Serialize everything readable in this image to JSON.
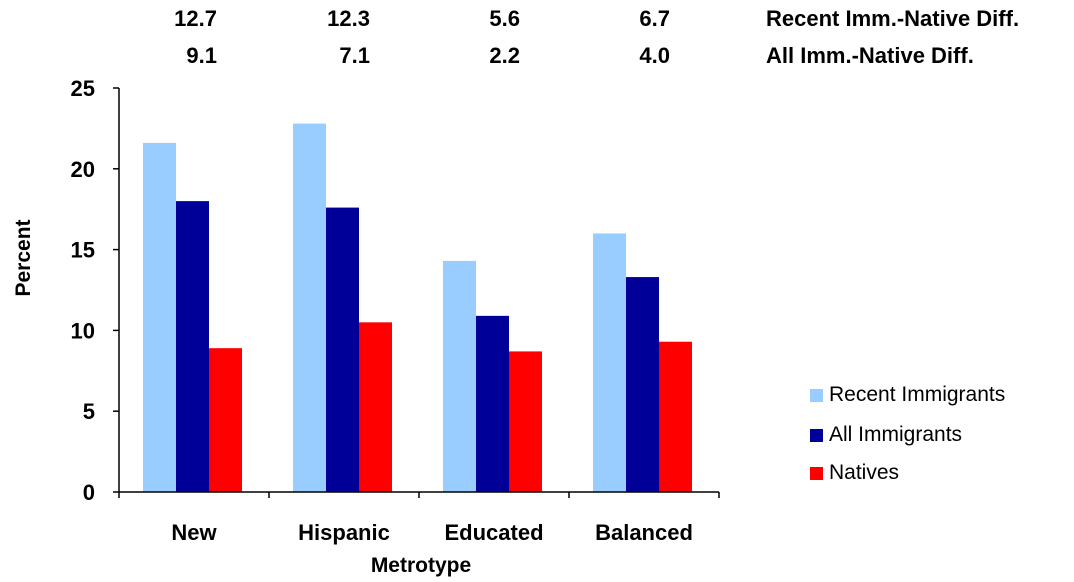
{
  "chart_data": {
    "type": "bar",
    "categories": [
      "New",
      "Hispanic",
      "Educated",
      "Balanced"
    ],
    "series": [
      {
        "name": "Recent Immigrants",
        "color": "#99ccff",
        "values": [
          21.6,
          22.8,
          14.3,
          16.0
        ]
      },
      {
        "name": "All Immigrants",
        "color": "#000099",
        "values": [
          18.0,
          17.6,
          10.9,
          13.3
        ]
      },
      {
        "name": "Natives",
        "color": "#ff0000",
        "values": [
          8.9,
          10.5,
          8.7,
          9.3
        ]
      }
    ],
    "ylim": [
      0,
      25
    ],
    "yticks": [
      0,
      5,
      10,
      15,
      20,
      25
    ],
    "xlabel": "Metrotype",
    "ylabel": "Percent",
    "grid": false,
    "legend_position": "right",
    "header_rows": [
      {
        "label": "Recent Imm.-Native Diff.",
        "values": [
          "12.7",
          "12.3",
          "5.6",
          "6.7"
        ]
      },
      {
        "label": "All Imm.-Native Diff.",
        "values": [
          "9.1",
          "7.1",
          "2.2",
          "4.0"
        ]
      }
    ]
  }
}
